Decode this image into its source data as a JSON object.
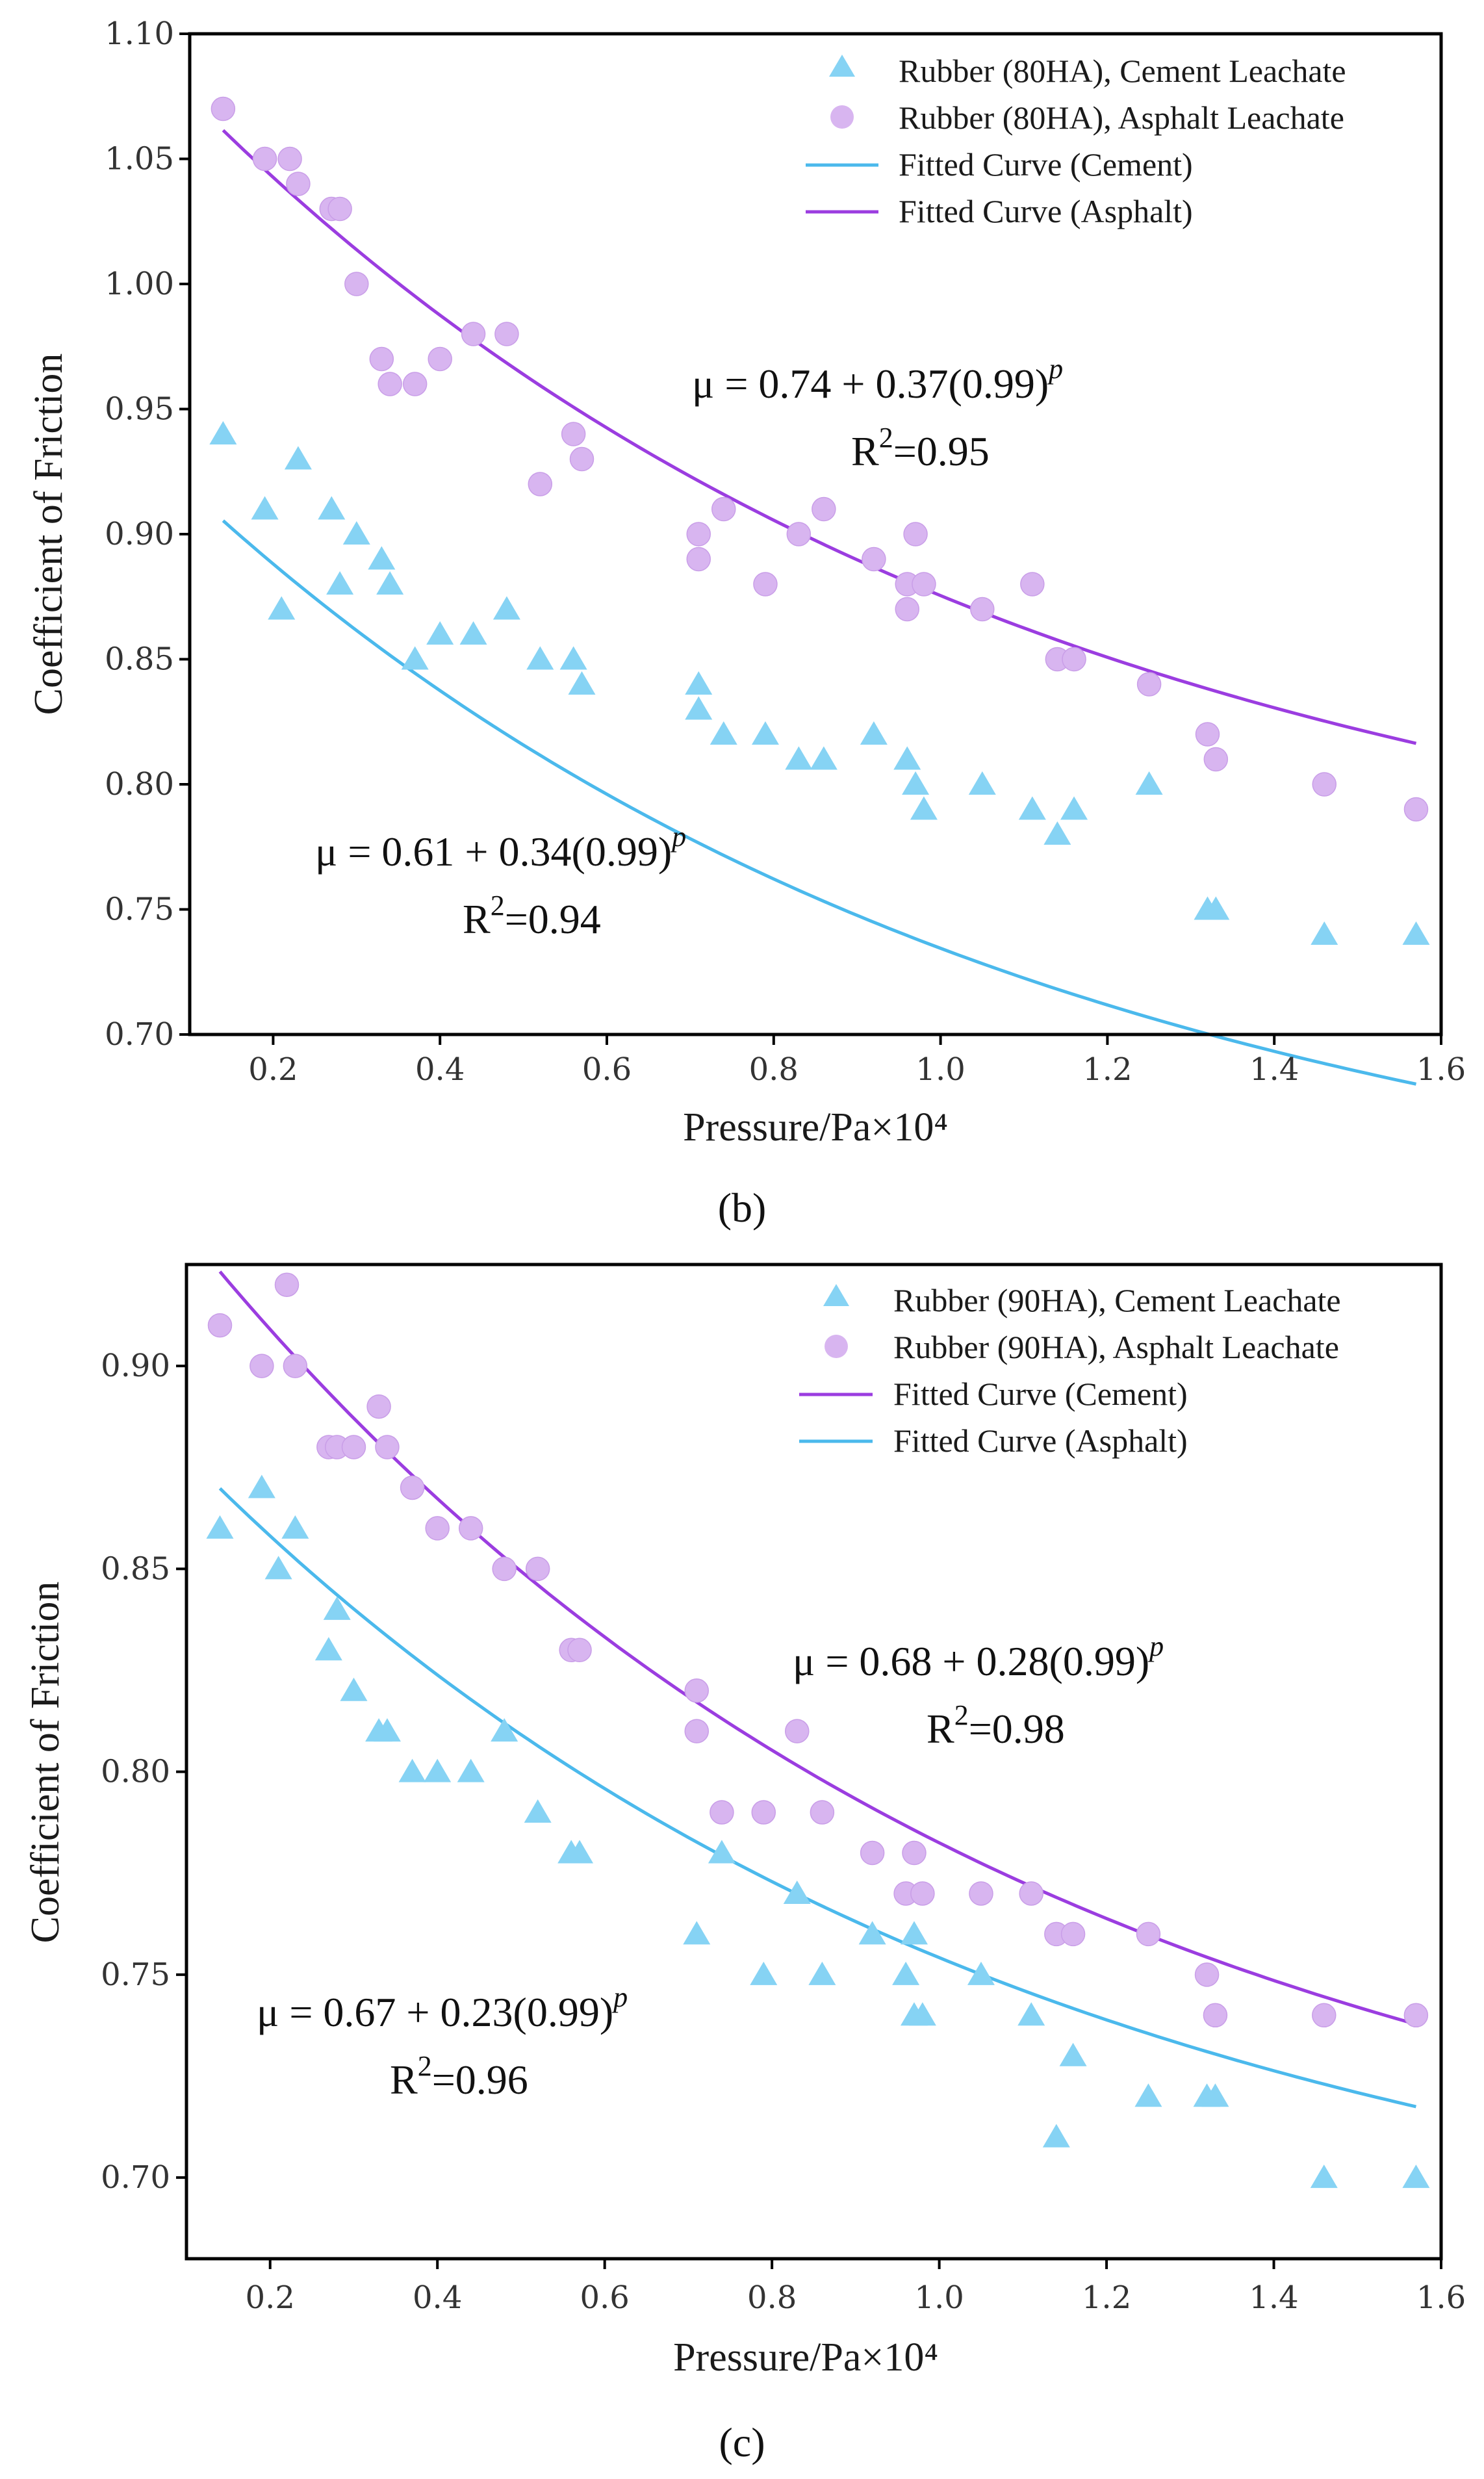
{
  "colors": {
    "cement": "#86d3f4",
    "cement_line": "#4bb9ec",
    "asphalt": "#d8b5f0",
    "asphalt_line": "#9b3de0",
    "axis": "#000000"
  },
  "chart_data": [
    {
      "type": "scatter",
      "panel_label": "(b)",
      "xlabel": "Pressure/Pa×10⁴",
      "ylabel": "Coefficient of Friction",
      "xlim": [
        0.1,
        1.6
      ],
      "ylim": [
        0.7,
        1.1
      ],
      "xticks": [
        0.2,
        0.4,
        0.6,
        0.8,
        1.0,
        1.2,
        1.4,
        1.6
      ],
      "xtick_labels": [
        "0.2",
        "0.4",
        "0.6",
        "0.8",
        "1.0",
        "1.2",
        "1.4",
        "1.6"
      ],
      "yticks": [
        0.7,
        0.75,
        0.8,
        0.85,
        0.9,
        0.95,
        1.0,
        1.05,
        1.1
      ],
      "ytick_labels": [
        "0.70",
        "0.75",
        "0.80",
        "0.85",
        "0.90",
        "0.95",
        "1.00",
        "1.05",
        "1.10"
      ],
      "legend": [
        {
          "label": "Rubber (80HA), Cement Leachate",
          "kind": "triangle",
          "color_key": "cement"
        },
        {
          "label": "Rubber (80HA), Asphalt Leachate",
          "kind": "circle",
          "color_key": "asphalt"
        },
        {
          "label": "Fitted Curve (Cement)",
          "kind": "line",
          "color_key": "cement_line"
        },
        {
          "label": "Fitted Curve (Asphalt)",
          "kind": "line",
          "color_key": "asphalt_line"
        }
      ],
      "series": [
        {
          "name": "Rubber (80HA), Cement Leachate",
          "marker": "triangle",
          "color_key": "cement",
          "x": [
            0.14,
            0.19,
            0.21,
            0.23,
            0.27,
            0.28,
            0.3,
            0.33,
            0.34,
            0.37,
            0.4,
            0.44,
            0.48,
            0.52,
            0.56,
            0.57,
            0.71,
            0.71,
            0.74,
            0.79,
            0.83,
            0.86,
            0.92,
            0.96,
            0.97,
            0.98,
            1.05,
            1.11,
            1.14,
            1.16,
            1.25,
            1.32,
            1.33,
            1.46,
            1.57
          ],
          "y": [
            0.94,
            0.91,
            0.87,
            0.93,
            0.91,
            0.88,
            0.9,
            0.89,
            0.88,
            0.85,
            0.86,
            0.86,
            0.87,
            0.85,
            0.85,
            0.84,
            0.84,
            0.83,
            0.82,
            0.82,
            0.81,
            0.81,
            0.82,
            0.81,
            0.8,
            0.79,
            0.8,
            0.79,
            0.78,
            0.79,
            0.8,
            0.75,
            0.75,
            0.74,
            0.74
          ]
        },
        {
          "name": "Rubber (80HA), Asphalt Leachate",
          "marker": "circle",
          "color_key": "asphalt",
          "x": [
            0.14,
            0.19,
            0.22,
            0.23,
            0.27,
            0.28,
            0.3,
            0.33,
            0.34,
            0.37,
            0.4,
            0.44,
            0.48,
            0.52,
            0.56,
            0.57,
            0.71,
            0.71,
            0.74,
            0.79,
            0.83,
            0.86,
            0.92,
            0.96,
            0.96,
            0.97,
            0.98,
            1.05,
            1.11,
            1.14,
            1.16,
            1.25,
            1.32,
            1.33,
            1.46,
            1.57
          ],
          "y": [
            1.07,
            1.05,
            1.05,
            1.04,
            1.03,
            1.03,
            1.0,
            0.97,
            0.96,
            0.96,
            0.97,
            0.98,
            0.98,
            0.92,
            0.94,
            0.93,
            0.9,
            0.89,
            0.91,
            0.88,
            0.9,
            0.91,
            0.89,
            0.87,
            0.88,
            0.9,
            0.88,
            0.87,
            0.88,
            0.85,
            0.85,
            0.84,
            0.82,
            0.81,
            0.8,
            0.79
          ]
        }
      ],
      "fits": [
        {
          "name": "Fitted Curve (Cement)",
          "color_key": "cement_line",
          "a": 0.61,
          "b": 0.34,
          "c": 0.99,
          "x_scale": 100,
          "x_range": [
            0.14,
            1.57
          ]
        },
        {
          "name": "Fitted Curve (Asphalt)",
          "color_key": "asphalt_line",
          "a": 0.74,
          "b": 0.37,
          "c": 0.99,
          "x_scale": 100,
          "x_range": [
            0.14,
            1.57
          ]
        }
      ],
      "annotations": [
        {
          "eq_prefix": "μ = 0.74 + 0.37(0.99)",
          "eq_exp": "p",
          "r2_prefix": "R",
          "r2_exp": "2",
          "r2_value": "=0.95"
        },
        {
          "eq_prefix": "μ = 0.61 + 0.34(0.99)",
          "eq_exp": "p",
          "r2_prefix": "R",
          "r2_exp": "2",
          "r2_value": "=0.94"
        }
      ]
    },
    {
      "type": "scatter",
      "panel_label": "(c)",
      "xlabel": "Pressure/Pa×10⁴",
      "ylabel": "Coefficient of Friction",
      "xlim": [
        0.1,
        1.6
      ],
      "ylim": [
        0.68,
        0.925
      ],
      "xticks": [
        0.2,
        0.4,
        0.6,
        0.8,
        1.0,
        1.2,
        1.4,
        1.6
      ],
      "xtick_labels": [
        "0.2",
        "0.4",
        "0.6",
        "0.8",
        "1.0",
        "1.2",
        "1.4",
        "1.6"
      ],
      "yticks": [
        0.7,
        0.75,
        0.8,
        0.85,
        0.9
      ],
      "ytick_labels": [
        "0.70",
        "0.75",
        "0.80",
        "0.85",
        "0.90"
      ],
      "legend": [
        {
          "label": "Rubber (90HA), Cement Leachate",
          "kind": "triangle",
          "color_key": "cement"
        },
        {
          "label": "Rubber (90HA), Asphalt Leachate",
          "kind": "circle",
          "color_key": "asphalt"
        },
        {
          "label": "Fitted Curve (Cement)",
          "kind": "line",
          "color_key": "asphalt_line"
        },
        {
          "label": "Fitted Curve (Asphalt)",
          "kind": "line",
          "color_key": "cement_line"
        }
      ],
      "series": [
        {
          "name": "Rubber (90HA), Cement Leachate",
          "marker": "triangle",
          "color_key": "cement",
          "x": [
            0.14,
            0.19,
            0.21,
            0.23,
            0.27,
            0.28,
            0.3,
            0.33,
            0.34,
            0.37,
            0.4,
            0.44,
            0.48,
            0.52,
            0.56,
            0.57,
            0.71,
            0.74,
            0.79,
            0.83,
            0.86,
            0.92,
            0.96,
            0.97,
            0.97,
            0.98,
            1.05,
            1.11,
            1.14,
            1.16,
            1.25,
            1.32,
            1.33,
            1.46,
            1.57
          ],
          "y": [
            0.86,
            0.87,
            0.85,
            0.86,
            0.83,
            0.84,
            0.82,
            0.81,
            0.81,
            0.8,
            0.8,
            0.8,
            0.81,
            0.79,
            0.78,
            0.78,
            0.76,
            0.78,
            0.75,
            0.77,
            0.75,
            0.76,
            0.75,
            0.76,
            0.74,
            0.74,
            0.75,
            0.74,
            0.71,
            0.73,
            0.72,
            0.72,
            0.72,
            0.7,
            0.7
          ]
        },
        {
          "name": "Rubber (90HA), Asphalt Leachate",
          "marker": "circle",
          "color_key": "asphalt",
          "x": [
            0.14,
            0.19,
            0.22,
            0.23,
            0.27,
            0.28,
            0.3,
            0.33,
            0.34,
            0.37,
            0.4,
            0.44,
            0.48,
            0.52,
            0.56,
            0.57,
            0.71,
            0.71,
            0.74,
            0.79,
            0.83,
            0.86,
            0.92,
            0.96,
            0.97,
            0.98,
            1.05,
            1.11,
            1.14,
            1.16,
            1.25,
            1.32,
            1.33,
            1.46,
            1.57
          ],
          "y": [
            0.91,
            0.9,
            0.92,
            0.9,
            0.88,
            0.88,
            0.88,
            0.89,
            0.88,
            0.87,
            0.86,
            0.86,
            0.85,
            0.85,
            0.83,
            0.83,
            0.82,
            0.81,
            0.79,
            0.79,
            0.81,
            0.79,
            0.78,
            0.77,
            0.78,
            0.77,
            0.77,
            0.77,
            0.76,
            0.76,
            0.76,
            0.75,
            0.74,
            0.74,
            0.74
          ]
        }
      ],
      "fits": [
        {
          "name": "Fitted Curve (Cement)",
          "color_key": "asphalt_line",
          "a": 0.68,
          "b": 0.28,
          "c": 0.99,
          "x_scale": 100,
          "x_range": [
            0.14,
            1.57
          ]
        },
        {
          "name": "Fitted Curve (Asphalt)",
          "color_key": "cement_line",
          "a": 0.67,
          "b": 0.23,
          "c": 0.99,
          "x_scale": 100,
          "x_range": [
            0.14,
            1.57
          ]
        }
      ],
      "annotations": [
        {
          "eq_prefix": "μ = 0.68 + 0.28(0.99)",
          "eq_exp": "p",
          "r2_prefix": "R",
          "r2_exp": "2",
          "r2_value": "=0.98"
        },
        {
          "eq_prefix": "μ = 0.67 + 0.23(0.99)",
          "eq_exp": "p",
          "r2_prefix": "R",
          "r2_exp": "2",
          "r2_value": "=0.96"
        }
      ]
    }
  ]
}
